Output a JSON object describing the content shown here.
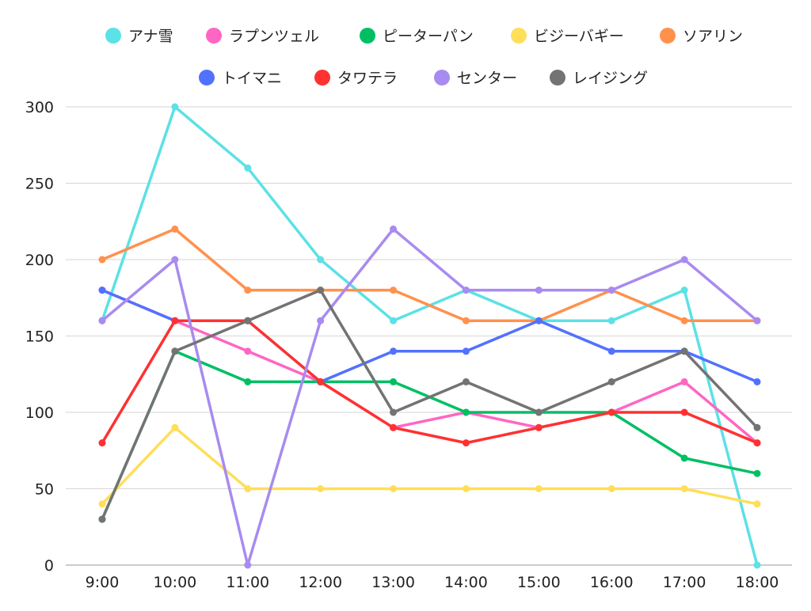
{
  "chart_data": {
    "type": "line",
    "title": "",
    "xlabel": "",
    "ylabel": "",
    "ylim": [
      0,
      300
    ],
    "yticks": [
      0,
      50,
      100,
      150,
      200,
      250,
      300
    ],
    "grid": true,
    "legend_position": "top",
    "categories": [
      "9:00",
      "10:00",
      "11:00",
      "12:00",
      "13:00",
      "14:00",
      "15:00",
      "16:00",
      "17:00",
      "18:00"
    ],
    "series": [
      {
        "name": "アナ雪",
        "color": "#5ce1e6",
        "values": [
          160,
          300,
          260,
          200,
          160,
          180,
          160,
          160,
          180,
          0
        ]
      },
      {
        "name": "ラプンツェル",
        "color": "#ff66c4",
        "values": [
          180,
          160,
          140,
          120,
          90,
          100,
          90,
          100,
          120,
          80
        ]
      },
      {
        "name": "ピーターパン",
        "color": "#00bf63",
        "values": [
          30,
          140,
          120,
          120,
          120,
          100,
          100,
          100,
          70,
          60
        ]
      },
      {
        "name": "ビジーバギー",
        "color": "#ffde59",
        "values": [
          40,
          90,
          50,
          50,
          50,
          50,
          50,
          50,
          50,
          40
        ]
      },
      {
        "name": "ソアリン",
        "color": "#ff914d",
        "values": [
          200,
          220,
          180,
          180,
          180,
          160,
          160,
          180,
          160,
          160
        ]
      },
      {
        "name": "トイマニ",
        "color": "#5271ff",
        "values": [
          180,
          160,
          160,
          120,
          140,
          140,
          160,
          140,
          140,
          120
        ]
      },
      {
        "name": "タワテラ",
        "color": "#ff3131",
        "values": [
          80,
          160,
          160,
          120,
          90,
          80,
          90,
          100,
          100,
          80
        ]
      },
      {
        "name": "センター",
        "color": "#a88bf0",
        "values": [
          160,
          200,
          0,
          160,
          220,
          180,
          180,
          180,
          200,
          160
        ]
      },
      {
        "name": "レイジング",
        "color": "#737373",
        "values": [
          30,
          140,
          160,
          180,
          100,
          120,
          100,
          120,
          140,
          90
        ]
      }
    ]
  }
}
